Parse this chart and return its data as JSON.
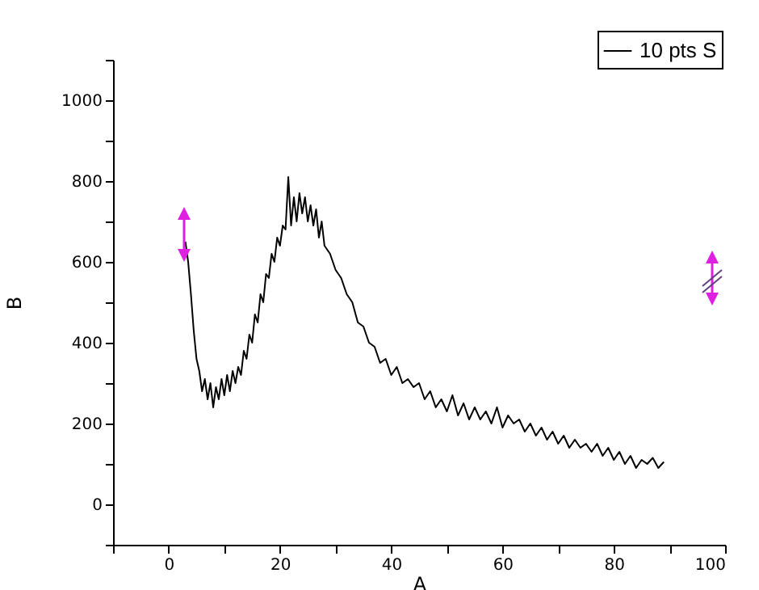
{
  "chart_data": {
    "type": "line",
    "xlabel": "A",
    "ylabel": "B",
    "xlim": [
      -10,
      100
    ],
    "ylim": [
      -100,
      1100
    ],
    "xticks": [
      {
        "value": -10,
        "label": null
      },
      0,
      {
        "value": 10,
        "label": null
      },
      20,
      {
        "value": 30,
        "label": null
      },
      40,
      {
        "value": 50,
        "label": null
      },
      60,
      {
        "value": 70,
        "label": null
      },
      80,
      {
        "value": 90,
        "label": null
      },
      100
    ],
    "yticks": [
      {
        "value": -100,
        "label": null
      },
      0,
      {
        "value": 100,
        "label": null
      },
      200,
      {
        "value": 300,
        "label": null
      },
      400,
      {
        "value": 500,
        "label": null
      },
      600,
      {
        "value": 700,
        "label": null
      },
      800,
      {
        "value": 900,
        "label": null
      },
      1000,
      {
        "value": 1100,
        "label": null
      }
    ],
    "legend": "top right",
    "grid": false,
    "x": [
      3,
      3.5,
      4,
      4.5,
      5,
      5.5,
      6,
      6.5,
      7,
      7.5,
      8,
      8.5,
      9,
      9.5,
      10,
      10.5,
      11,
      11.5,
      12,
      12.5,
      13,
      13.5,
      14,
      14.5,
      15,
      15.5,
      16,
      16.5,
      17,
      17.5,
      18,
      18.5,
      19,
      19.5,
      20,
      20.5,
      21,
      21.5,
      22,
      22.5,
      23,
      23.5,
      24,
      24.5,
      25,
      25.5,
      26,
      26.5,
      27,
      27.5,
      28,
      29,
      30,
      31,
      32,
      33,
      34,
      35,
      36,
      37,
      38,
      39,
      40,
      41,
      42,
      43,
      44,
      45,
      46,
      47,
      48,
      49,
      50,
      51,
      52,
      53,
      54,
      55,
      56,
      57,
      58,
      59,
      60,
      61,
      62,
      63,
      64,
      65,
      66,
      67,
      68,
      69,
      70,
      71,
      72,
      73,
      74,
      75,
      76,
      77,
      78,
      79,
      80,
      81,
      82,
      83,
      84,
      85,
      86,
      87,
      88,
      89
    ],
    "series": [
      {
        "name": "10 pts S",
        "color": "#000000",
        "values": [
          650,
          600,
          520,
          430,
          360,
          330,
          280,
          310,
          260,
          300,
          240,
          290,
          260,
          310,
          270,
          320,
          280,
          330,
          300,
          340,
          320,
          380,
          360,
          420,
          400,
          470,
          450,
          520,
          500,
          570,
          560,
          620,
          600,
          660,
          640,
          690,
          680,
          810,
          690,
          760,
          700,
          770,
          720,
          760,
          700,
          740,
          690,
          730,
          660,
          700,
          640,
          620,
          580,
          560,
          520,
          500,
          450,
          440,
          400,
          390,
          350,
          360,
          320,
          340,
          300,
          310,
          290,
          300,
          260,
          280,
          240,
          260,
          230,
          270,
          220,
          250,
          210,
          240,
          210,
          230,
          200,
          240,
          190,
          220,
          200,
          210,
          180,
          200,
          170,
          190,
          160,
          180,
          150,
          170,
          140,
          160,
          140,
          150,
          130,
          150,
          120,
          140,
          110,
          130,
          100,
          120,
          90,
          110,
          100,
          115,
          90,
          105
        ]
      }
    ]
  }
}
